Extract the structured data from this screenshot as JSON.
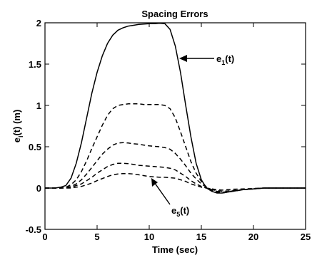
{
  "chart_data": {
    "type": "line",
    "title": "Spacing Errors",
    "xlabel": "Time (sec)",
    "ylabel": {
      "base": "e",
      "sub": "i",
      "rest": "(t) (m)"
    },
    "xlim": [
      0,
      25
    ],
    "ylim": [
      -0.5,
      2
    ],
    "xticks": [
      0,
      5,
      10,
      15,
      20,
      25
    ],
    "yticks": [
      -0.5,
      0,
      0.5,
      1,
      1.5,
      2
    ],
    "xtick_labels": [
      "0",
      "5",
      "10",
      "15",
      "20",
      "25"
    ],
    "ytick_labels": [
      "-0.5",
      "0",
      "0.5",
      "1",
      "1.5",
      "2"
    ],
    "grid": false,
    "legend": false,
    "series": [
      {
        "name": "e1(t)",
        "style": "solid",
        "x": [
          0,
          1,
          1.5,
          2,
          2.5,
          3,
          3.5,
          4,
          4.5,
          5,
          5.5,
          6,
          6.5,
          7,
          7.5,
          8,
          8.5,
          9,
          9.5,
          10,
          10.5,
          11,
          11.5,
          12,
          12.5,
          13,
          13.5,
          14,
          14.5,
          15,
          15.5,
          16,
          16.5,
          17,
          17.5,
          18,
          19,
          20,
          21,
          22,
          23,
          24,
          25
        ],
        "y": [
          0,
          0,
          0.01,
          0.03,
          0.12,
          0.3,
          0.55,
          0.85,
          1.15,
          1.4,
          1.6,
          1.75,
          1.85,
          1.91,
          1.94,
          1.96,
          1.97,
          1.98,
          1.985,
          1.99,
          1.99,
          1.995,
          1.99,
          1.92,
          1.72,
          1.4,
          1.0,
          0.62,
          0.3,
          0.1,
          0.0,
          -0.04,
          -0.06,
          -0.06,
          -0.05,
          -0.04,
          -0.02,
          -0.01,
          0,
          0,
          0,
          0,
          0
        ]
      },
      {
        "name": "",
        "style": "dashed",
        "x": [
          0,
          1,
          1.5,
          2,
          2.5,
          3,
          3.5,
          4,
          4.5,
          5,
          5.5,
          6,
          6.5,
          7,
          7.5,
          8,
          8.5,
          9,
          9.5,
          10,
          10.5,
          11,
          11.5,
          12,
          12.5,
          13,
          13.5,
          14,
          14.5,
          15,
          15.5,
          16,
          16.5,
          17,
          17.5,
          18,
          19,
          20,
          21,
          22,
          23,
          24,
          25
        ],
        "y": [
          0,
          0,
          0,
          0.01,
          0.04,
          0.1,
          0.2,
          0.33,
          0.48,
          0.62,
          0.76,
          0.88,
          0.96,
          1.0,
          1.01,
          1.02,
          1.02,
          1.02,
          1.01,
          1.01,
          1.01,
          1.01,
          1.0,
          0.96,
          0.85,
          0.68,
          0.5,
          0.32,
          0.18,
          0.08,
          0.01,
          -0.03,
          -0.05,
          -0.06,
          -0.05,
          -0.04,
          -0.02,
          -0.01,
          0,
          0,
          0,
          0,
          0
        ]
      },
      {
        "name": "",
        "style": "dashed",
        "x": [
          0,
          1,
          1.5,
          2,
          2.5,
          3,
          3.5,
          4,
          4.5,
          5,
          5.5,
          6,
          6.5,
          7,
          7.5,
          8,
          8.5,
          9,
          9.5,
          10,
          10.5,
          11,
          11.5,
          12,
          12.5,
          13,
          13.5,
          14,
          14.5,
          15,
          15.5,
          16,
          16.5,
          17,
          17.5,
          18,
          19,
          20,
          21,
          22,
          23,
          24,
          25
        ],
        "y": [
          0,
          0,
          0,
          0.005,
          0.02,
          0.05,
          0.1,
          0.17,
          0.25,
          0.33,
          0.41,
          0.47,
          0.52,
          0.545,
          0.55,
          0.545,
          0.535,
          0.53,
          0.52,
          0.51,
          0.505,
          0.5,
          0.49,
          0.47,
          0.42,
          0.35,
          0.27,
          0.18,
          0.11,
          0.05,
          0.01,
          -0.02,
          -0.04,
          -0.05,
          -0.045,
          -0.035,
          -0.02,
          -0.01,
          0,
          0,
          0,
          0,
          0
        ]
      },
      {
        "name": "",
        "style": "dashed",
        "x": [
          0,
          1,
          1.5,
          2,
          2.5,
          3,
          3.5,
          4,
          4.5,
          5,
          5.5,
          6,
          6.5,
          7,
          7.5,
          8,
          8.5,
          9,
          9.5,
          10,
          10.5,
          11,
          11.5,
          12,
          12.5,
          13,
          13.5,
          14,
          14.5,
          15,
          15.5,
          16,
          16.5,
          17,
          17.5,
          18,
          19,
          20,
          21,
          22,
          23,
          24,
          25
        ],
        "y": [
          0,
          0,
          0,
          0,
          0.01,
          0.03,
          0.05,
          0.09,
          0.13,
          0.18,
          0.22,
          0.26,
          0.285,
          0.3,
          0.3,
          0.295,
          0.285,
          0.275,
          0.27,
          0.265,
          0.26,
          0.255,
          0.25,
          0.24,
          0.22,
          0.18,
          0.14,
          0.09,
          0.05,
          0.02,
          0,
          -0.02,
          -0.03,
          -0.04,
          -0.035,
          -0.03,
          -0.02,
          -0.01,
          0,
          0,
          0,
          0,
          0
        ]
      },
      {
        "name": "e5(t)",
        "style": "dashed",
        "x": [
          0,
          1,
          1.5,
          2,
          2.5,
          3,
          3.5,
          4,
          4.5,
          5,
          5.5,
          6,
          6.5,
          7,
          7.5,
          8,
          8.5,
          9,
          9.5,
          10,
          10.5,
          11,
          11.5,
          12,
          12.5,
          13,
          13.5,
          14,
          14.5,
          15,
          15.5,
          16,
          16.5,
          17,
          17.5,
          18,
          19,
          20,
          21,
          22,
          23,
          24,
          25
        ],
        "y": [
          0,
          0,
          0,
          0,
          0,
          0.01,
          0.02,
          0.04,
          0.06,
          0.09,
          0.115,
          0.14,
          0.16,
          0.17,
          0.175,
          0.175,
          0.17,
          0.16,
          0.15,
          0.14,
          0.135,
          0.13,
          0.13,
          0.125,
          0.12,
          0.1,
          0.08,
          0.05,
          0.03,
          0.01,
          0,
          -0.01,
          -0.02,
          -0.025,
          -0.02,
          -0.015,
          -0.01,
          -0.005,
          0,
          0,
          0,
          0,
          0
        ]
      }
    ],
    "annotations": [
      {
        "base": "e",
        "sub": "1",
        "rest": "(t)",
        "arrow_to": [
          12.4,
          1.55
        ]
      },
      {
        "base": "e",
        "sub": "5",
        "rest": "(t)",
        "arrow_to": [
          11.9,
          0.14
        ]
      }
    ]
  }
}
